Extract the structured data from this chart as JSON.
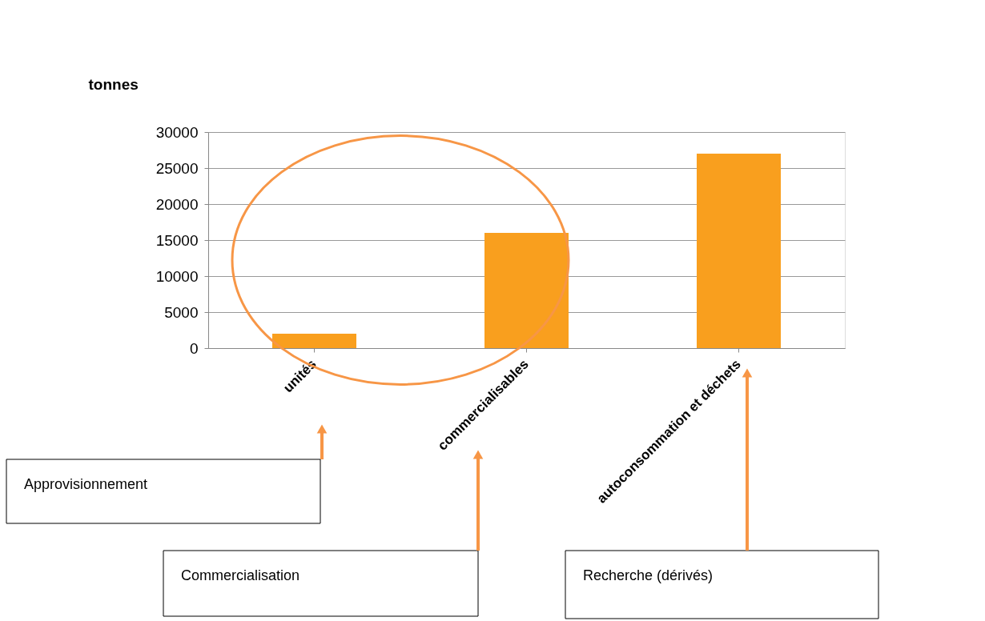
{
  "chart_data": {
    "type": "bar",
    "ylabel": "tonnes",
    "categories": [
      "unités",
      "commercialisables",
      "autoconsommation et déchets"
    ],
    "values": [
      2000,
      16000,
      27000
    ],
    "color": "#f99f1e",
    "ylim": [
      0,
      30000
    ],
    "yticks": [
      0,
      5000,
      10000,
      15000,
      20000,
      25000,
      30000
    ],
    "grid": "y",
    "annotations": [
      "Approvisionnement",
      "Commercialisation",
      "Recherche (dérivés)"
    ]
  }
}
